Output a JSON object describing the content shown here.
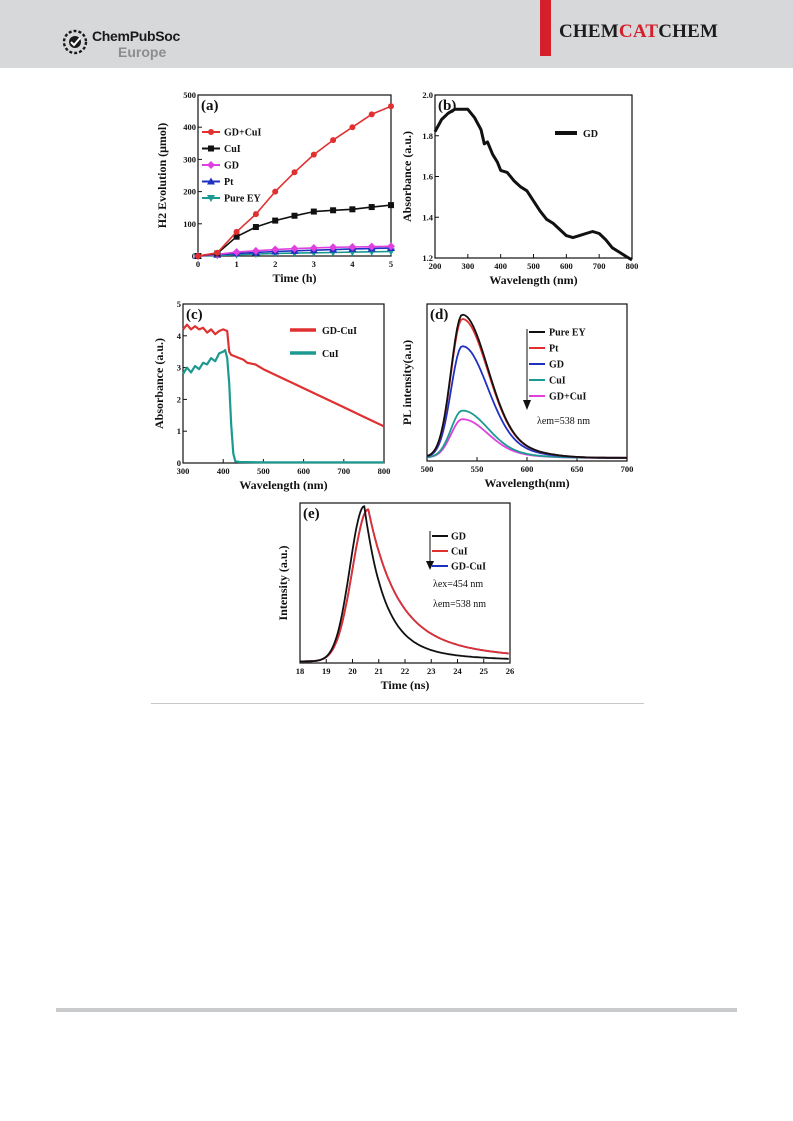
{
  "header": {
    "logo_line1": "ChemPubSoc",
    "logo_line2": "Europe",
    "journal_part1": "CHEM",
    "journal_part2": "CAT",
    "journal_part3": "CHEM",
    "accent_color": "#d5202c",
    "background_color": "#d7d8da"
  },
  "chart_data": [
    {
      "id": "a",
      "type": "line",
      "panel_label": "(a)",
      "xlabel": "Time (h)",
      "ylabel": "H2 Evolution (μmol)",
      "xlim": [
        0,
        5
      ],
      "ylim": [
        0,
        500
      ],
      "xticks": [
        0,
        1,
        2,
        3,
        4,
        5
      ],
      "yticks": [
        0,
        100,
        200,
        300,
        400,
        500
      ],
      "legend_position": "top-left",
      "series": [
        {
          "name": "GD+CuI",
          "color": "#e03030",
          "marker": "circle",
          "x": [
            0,
            0.5,
            1,
            1.5,
            2,
            2.5,
            3,
            3.5,
            4,
            4.5,
            5
          ],
          "y": [
            0,
            10,
            75,
            130,
            200,
            260,
            315,
            360,
            400,
            440,
            465
          ]
        },
        {
          "name": "CuI",
          "color": "#111111",
          "marker": "square",
          "x": [
            0,
            0.5,
            1,
            1.5,
            2,
            2.5,
            3,
            3.5,
            4,
            4.5,
            5
          ],
          "y": [
            0,
            8,
            60,
            90,
            110,
            125,
            138,
            142,
            145,
            152,
            158
          ]
        },
        {
          "name": "GD",
          "color": "#e040e0",
          "marker": "diamond",
          "x": [
            0,
            0.5,
            1,
            1.5,
            2,
            2.5,
            3,
            3.5,
            4,
            4.5,
            5
          ],
          "y": [
            0,
            5,
            12,
            16,
            20,
            23,
            25,
            27,
            28,
            29,
            30
          ]
        },
        {
          "name": "Pt",
          "color": "#2030c0",
          "marker": "triangle-up",
          "x": [
            0,
            0.5,
            1,
            1.5,
            2,
            2.5,
            3,
            3.5,
            4,
            4.5,
            5
          ],
          "y": [
            0,
            4,
            8,
            11,
            14,
            16,
            18,
            20,
            22,
            23,
            25
          ]
        },
        {
          "name": "Pure EY",
          "color": "#1c9a92",
          "marker": "triangle-down",
          "x": [
            0,
            0.5,
            1,
            1.5,
            2,
            2.5,
            3,
            3.5,
            4,
            4.5,
            5
          ],
          "y": [
            0,
            2,
            4,
            6,
            8,
            9,
            10,
            11,
            12,
            13,
            14
          ]
        }
      ]
    },
    {
      "id": "b",
      "type": "line",
      "panel_label": "(b)",
      "xlabel": "Wavelength (nm)",
      "ylabel": "Absorbance (a.u.)",
      "xlim": [
        200,
        800
      ],
      "ylim": [
        1.2,
        2.0
      ],
      "xticks": [
        200,
        300,
        400,
        500,
        600,
        700,
        800
      ],
      "yticks": [
        1.2,
        1.4,
        1.6,
        1.8,
        2.0
      ],
      "legend_position": "top-right",
      "series": [
        {
          "name": "GD",
          "color": "#111111",
          "x": [
            200,
            220,
            240,
            260,
            280,
            300,
            320,
            340,
            350,
            360,
            375,
            390,
            400,
            420,
            440,
            460,
            480,
            500,
            520,
            540,
            560,
            580,
            600,
            620,
            640,
            660,
            680,
            700,
            720,
            740,
            760,
            780,
            800
          ],
          "y": [
            1.82,
            1.88,
            1.91,
            1.93,
            1.93,
            1.93,
            1.89,
            1.83,
            1.76,
            1.77,
            1.71,
            1.67,
            1.63,
            1.62,
            1.58,
            1.55,
            1.53,
            1.48,
            1.43,
            1.39,
            1.37,
            1.34,
            1.31,
            1.3,
            1.31,
            1.32,
            1.33,
            1.32,
            1.29,
            1.25,
            1.23,
            1.21,
            1.19
          ]
        }
      ]
    },
    {
      "id": "c",
      "type": "line",
      "panel_label": "(c)",
      "xlabel": "Wavelength (nm)",
      "ylabel": "Absorbance (a.u.)",
      "xlim": [
        300,
        800
      ],
      "ylim": [
        0,
        5
      ],
      "xticks": [
        300,
        400,
        500,
        600,
        700,
        800
      ],
      "yticks": [
        0,
        1,
        2,
        3,
        4,
        5
      ],
      "legend_position": "top-right",
      "series": [
        {
          "name": "GD-CuI",
          "color": "#e03030",
          "x": [
            300,
            310,
            320,
            330,
            340,
            350,
            360,
            370,
            380,
            390,
            400,
            410,
            415,
            420,
            430,
            440,
            450,
            460,
            480,
            500,
            550,
            600,
            650,
            700,
            750,
            800
          ],
          "y": [
            4.2,
            4.35,
            4.2,
            4.3,
            4.2,
            4.25,
            4.1,
            4.2,
            4.05,
            4.15,
            4.2,
            4.15,
            3.5,
            3.4,
            3.35,
            3.3,
            3.25,
            3.15,
            3.1,
            2.95,
            2.65,
            2.35,
            2.05,
            1.75,
            1.45,
            1.15
          ]
        },
        {
          "name": "CuI",
          "color": "#1c9a92",
          "x": [
            300,
            310,
            320,
            330,
            340,
            350,
            360,
            370,
            380,
            390,
            400,
            405,
            410,
            415,
            420,
            425,
            430,
            440,
            500,
            600,
            700,
            800
          ],
          "y": [
            2.8,
            3.0,
            2.85,
            3.05,
            2.95,
            3.15,
            3.1,
            3.3,
            3.2,
            3.45,
            3.5,
            3.55,
            3.3,
            2.5,
            1.2,
            0.3,
            0.05,
            0.03,
            0.02,
            0.02,
            0.02,
            0.02
          ]
        }
      ]
    },
    {
      "id": "d",
      "type": "line",
      "panel_label": "(d)",
      "xlabel": "Wavelength(nm)",
      "ylabel": "PL intensity(a.u)",
      "xlim": [
        500,
        700
      ],
      "ylim": [
        0,
        1
      ],
      "xticks": [
        500,
        550,
        600,
        650,
        700
      ],
      "annotation": "λem=538 nm",
      "legend_position": "top-right",
      "series": [
        {
          "name": "Pure EY",
          "color": "#111111",
          "peak": 1.0
        },
        {
          "name": "Pt",
          "color": "#e03030",
          "peak": 0.97
        },
        {
          "name": "GD",
          "color": "#2030c0",
          "peak": 0.78
        },
        {
          "name": "CuI",
          "color": "#1c9a92",
          "peak": 0.33
        },
        {
          "name": "GD+CuI",
          "color": "#e040e0",
          "peak": 0.27
        }
      ]
    },
    {
      "id": "e",
      "type": "line",
      "panel_label": "(e)",
      "xlabel": "Time (ns)",
      "ylabel": "Intensity (a.u.)",
      "xlim": [
        18,
        26
      ],
      "ylim": [
        0,
        1
      ],
      "xticks": [
        18,
        19,
        20,
        21,
        22,
        23,
        24,
        25,
        26
      ],
      "annotation_ex": "λex=454 nm",
      "annotation_em": "λem=538 nm",
      "legend_position": "top-right",
      "series": [
        {
          "name": "GD",
          "color": "#111111",
          "peak_time": 20.45
        },
        {
          "name": "CuI",
          "color": "#e03030",
          "peak_time": 20.6
        },
        {
          "name": "GD-CuI",
          "color": "#2030c0",
          "peak_time": 20.6
        }
      ]
    }
  ]
}
